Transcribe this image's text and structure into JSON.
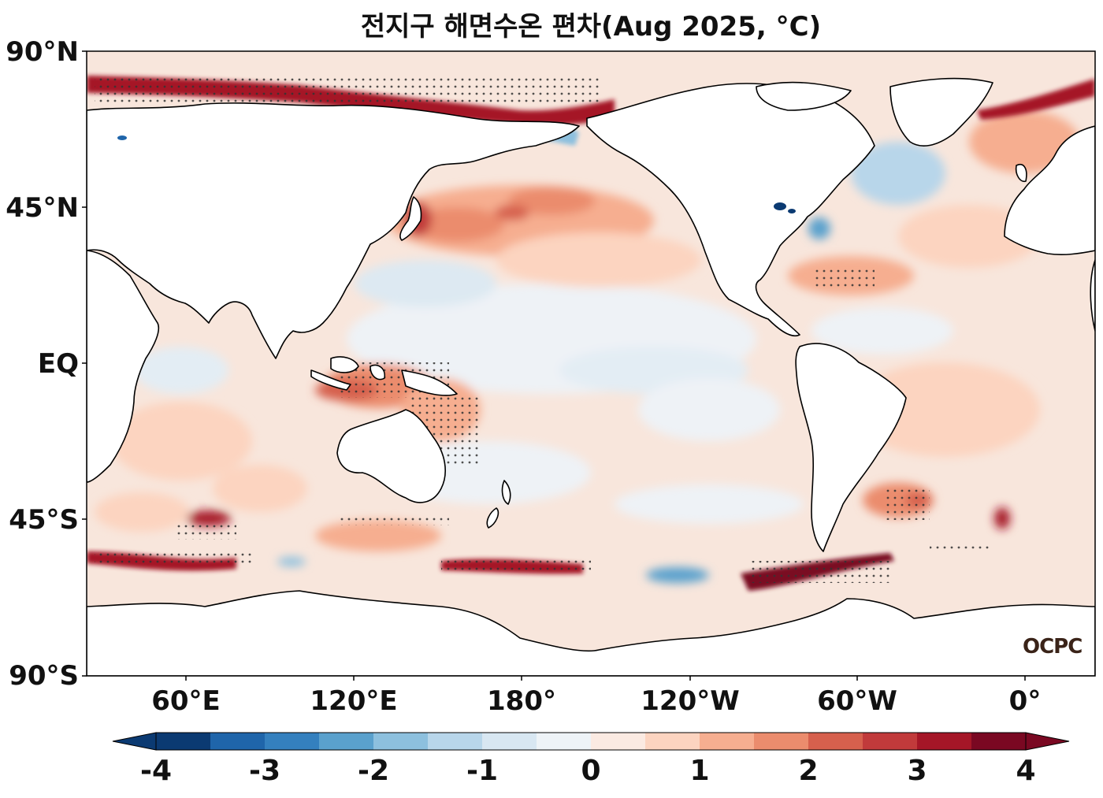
{
  "title": "전지구 해면수온 편차(Aug 2025, °C)",
  "watermark": "OCPC",
  "lat_ticks": [
    "90°N",
    "45°N",
    "EQ",
    "45°S",
    "90°S"
  ],
  "lon_ticks": [
    "60°E",
    "120°E",
    "180°",
    "120°W",
    "60°W",
    "0°"
  ],
  "colorbar": {
    "tick_labels": [
      "-4",
      "-3",
      "-2",
      "-1",
      "0",
      "1",
      "2",
      "3",
      "4"
    ],
    "levels": [
      -4,
      -3.5,
      -3,
      -2.5,
      -2,
      -1.5,
      -1,
      -0.5,
      0,
      0.5,
      1,
      1.5,
      2,
      2.5,
      3,
      3.5,
      4
    ],
    "colors": [
      "#0b3a72",
      "#1f65aa",
      "#3480be",
      "#5aa1cd",
      "#8dc0de",
      "#b8d6ea",
      "#d8e7f2",
      "#eef3f7",
      "#fbeae2",
      "#fcd4c0",
      "#f6ae90",
      "#eb8c6d",
      "#d6604d",
      "#c13a3b",
      "#a51627",
      "#7a0822"
    ],
    "under_color": "#0b3a72",
    "over_color": "#7a0822",
    "extend": "both"
  },
  "map": {
    "projection": "PlateCarree",
    "central_longitude": 180,
    "lon_range": [
      30,
      390
    ],
    "lat_range": [
      -90,
      90
    ],
    "stippling": "significant anomalies marked with dots"
  }
}
